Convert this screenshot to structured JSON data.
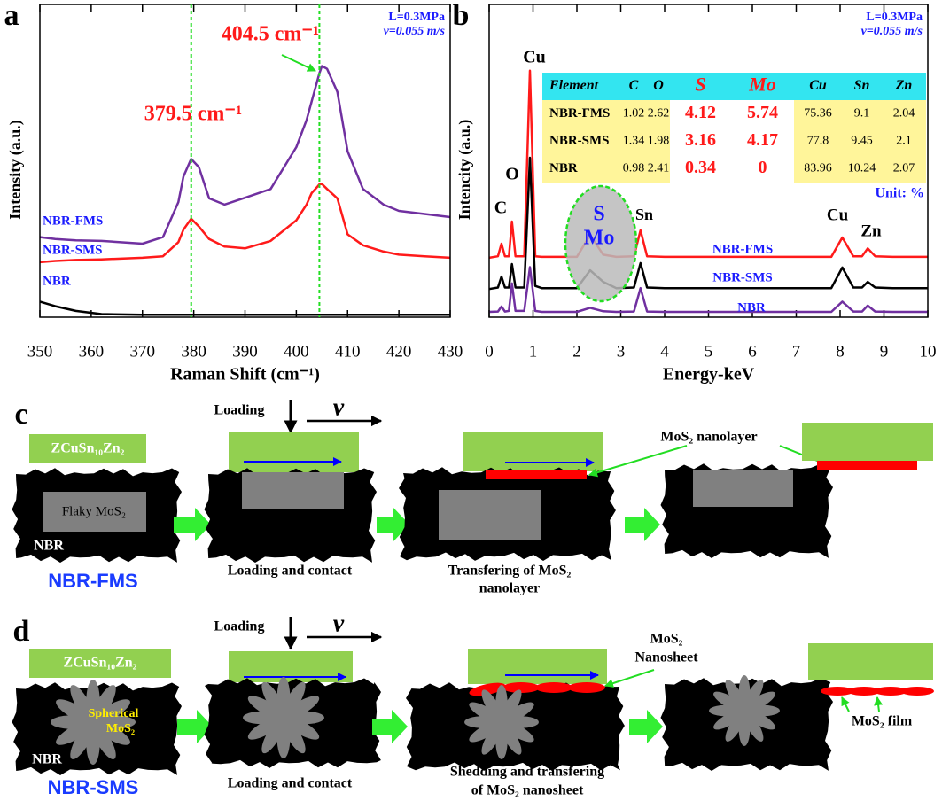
{
  "chart_data": [
    {
      "type": "line",
      "panel_label": "a",
      "xlabel": "Raman Shift (cm⁻¹)",
      "ylabel": "Intensity (a.u.)",
      "conditions": [
        "L=0.3MPa",
        "v=0.055 m/s"
      ],
      "xlim": [
        350,
        430
      ],
      "xticks": [
        350,
        360,
        370,
        380,
        390,
        400,
        410,
        420,
        430
      ],
      "ylim": [
        0,
        100
      ],
      "annotations": [
        {
          "text": "379.5 cm⁻¹",
          "x": 379.5
        },
        {
          "text": "404.5 cm⁻¹",
          "x": 404.5
        }
      ],
      "x": [
        350,
        353,
        357,
        362,
        370,
        374,
        377,
        378,
        379.5,
        381,
        383,
        386,
        390,
        395,
        400,
        402,
        403,
        404,
        404.5,
        405,
        406,
        408,
        410,
        413,
        417,
        420,
        425,
        430
      ],
      "series": [
        {
          "name": "NBR-FMS",
          "color": "#7030a0",
          "values": [
            25.6,
            25,
            24.6,
            24.4,
            23.5,
            25.6,
            36.8,
            45,
            50.6,
            48,
            38,
            36,
            38.2,
            41,
            54.4,
            63,
            69,
            75,
            78,
            80.3,
            79.4,
            72,
            53,
            41,
            36,
            34,
            33,
            32
          ]
        },
        {
          "name": "NBR-SMS",
          "color": "#ff1a1a",
          "values": [
            17.6,
            18,
            18.3,
            18.5,
            19,
            19.5,
            24,
            28,
            31.5,
            29,
            25,
            22.6,
            22,
            24.4,
            31,
            36,
            39.7,
            41.5,
            42.5,
            42.6,
            41,
            38,
            26.5,
            23,
            21,
            20,
            19.5,
            19
          ]
        },
        {
          "name": "NBR",
          "color": "#000000",
          "values": [
            5,
            3.5,
            2,
            1,
            0.8,
            0.8,
            0.8,
            0.8,
            0.8,
            0.8,
            0.8,
            0.8,
            0.8,
            0.8,
            0.8,
            0.8,
            0.8,
            0.8,
            0.8,
            0.8,
            0.8,
            0.8,
            0.8,
            0.8,
            0.8,
            0.8,
            0.8,
            0.8
          ]
        }
      ]
    },
    {
      "type": "line",
      "panel_label": "b",
      "xlabel": "Energy-keV",
      "ylabel": "Intencity (a.u.)",
      "conditions": [
        "L=0.3MPa",
        "v=0.055 m/s"
      ],
      "xlim": [
        0,
        10
      ],
      "xticks": [
        0,
        1,
        2,
        3,
        4,
        5,
        6,
        7,
        8,
        9,
        10
      ],
      "ylim": [
        0,
        100
      ],
      "peak_labels": [
        "Cu",
        "O",
        "C",
        "Sn",
        "Cu",
        "Zn",
        "S",
        "Mo"
      ],
      "x": [
        0,
        0.2,
        0.28,
        0.36,
        0.45,
        0.52,
        0.6,
        0.8,
        0.93,
        1.05,
        1.2,
        1.6,
        2,
        2.3,
        2.6,
        2.9,
        3.3,
        3.45,
        3.6,
        4,
        5,
        6,
        7,
        7.8,
        8.05,
        8.3,
        8.5,
        8.63,
        8.8,
        9.2,
        10
      ],
      "series": [
        {
          "name": "NBR-FMS",
          "color": "#ff1a1a",
          "values": [
            19,
            19.5,
            23.5,
            19.5,
            19.5,
            30.6,
            19.5,
            19.5,
            78.8,
            19.5,
            19.3,
            19.3,
            19.3,
            26.3,
            20,
            19.3,
            19.5,
            27.8,
            19.5,
            19.3,
            19.3,
            19.3,
            19.3,
            19.3,
            25.5,
            19.5,
            19.5,
            22,
            19.5,
            19.3,
            19.3
          ]
        },
        {
          "name": "NBR-SMS",
          "color": "#000000",
          "values": [
            9,
            9.5,
            13,
            9.5,
            9.5,
            17,
            9.5,
            9.5,
            51,
            10,
            9.3,
            9.3,
            9.3,
            15,
            11.3,
            9.3,
            9.5,
            17.3,
            9.5,
            9.3,
            9.3,
            9.3,
            9.3,
            9.3,
            15.9,
            9.5,
            9.5,
            11.3,
            9.5,
            9.3,
            9.3
          ]
        },
        {
          "name": "NBR",
          "color": "#7030a0",
          "values": [
            1.7,
            1.8,
            3.4,
            1.8,
            2,
            10.8,
            2,
            2,
            16,
            2,
            1.7,
            1.7,
            1.7,
            3,
            1.9,
            1.7,
            1.8,
            9.3,
            1.8,
            1.7,
            1.7,
            1.7,
            1.7,
            1.7,
            5,
            1.8,
            1.8,
            3.7,
            1.8,
            1.7,
            1.7
          ]
        }
      ]
    }
  ],
  "eds_table": {
    "header": [
      "Element",
      "C",
      "O",
      "S",
      "Mo",
      "Cu",
      "Sn",
      "Zn"
    ],
    "rows": [
      [
        "NBR-FMS",
        1.02,
        2.62,
        4.12,
        5.74,
        75.36,
        9.1,
        2.04
      ],
      [
        "NBR-SMS",
        1.34,
        1.98,
        3.16,
        4.17,
        77.8,
        9.45,
        2.1
      ],
      [
        "NBR",
        0.98,
        2.41,
        0.34,
        0,
        83.96,
        10.24,
        2.07
      ]
    ],
    "unit": "Unit: %"
  },
  "schematic_c": {
    "label": "c",
    "ring_label": "ZCuSn₁₀Zn₂",
    "filler_label": "Flaky MoS₂",
    "matrix_label": "NBR",
    "sample": "NBR-FMS",
    "loading": "Loading",
    "velocity": "v",
    "step1": "Loading and contact",
    "step2": [
      "Transfering of  MoS₂",
      "nanolayer"
    ],
    "product": "MoS₂ nanolayer"
  },
  "schematic_d": {
    "label": "d",
    "ring_label": "ZCuSn₁₀Zn₂",
    "filler_label": [
      "Spherical",
      "MoS₂"
    ],
    "matrix_label": "NBR",
    "sample": "NBR-SMS",
    "loading": "Loading",
    "velocity": "v",
    "step1": "Loading and contact",
    "step2": [
      "Shedding and transfering",
      "of  MoS₂ nanosheet"
    ],
    "product": [
      "MoS₂",
      "Nanosheet"
    ],
    "final": "MoS₂ film"
  }
}
